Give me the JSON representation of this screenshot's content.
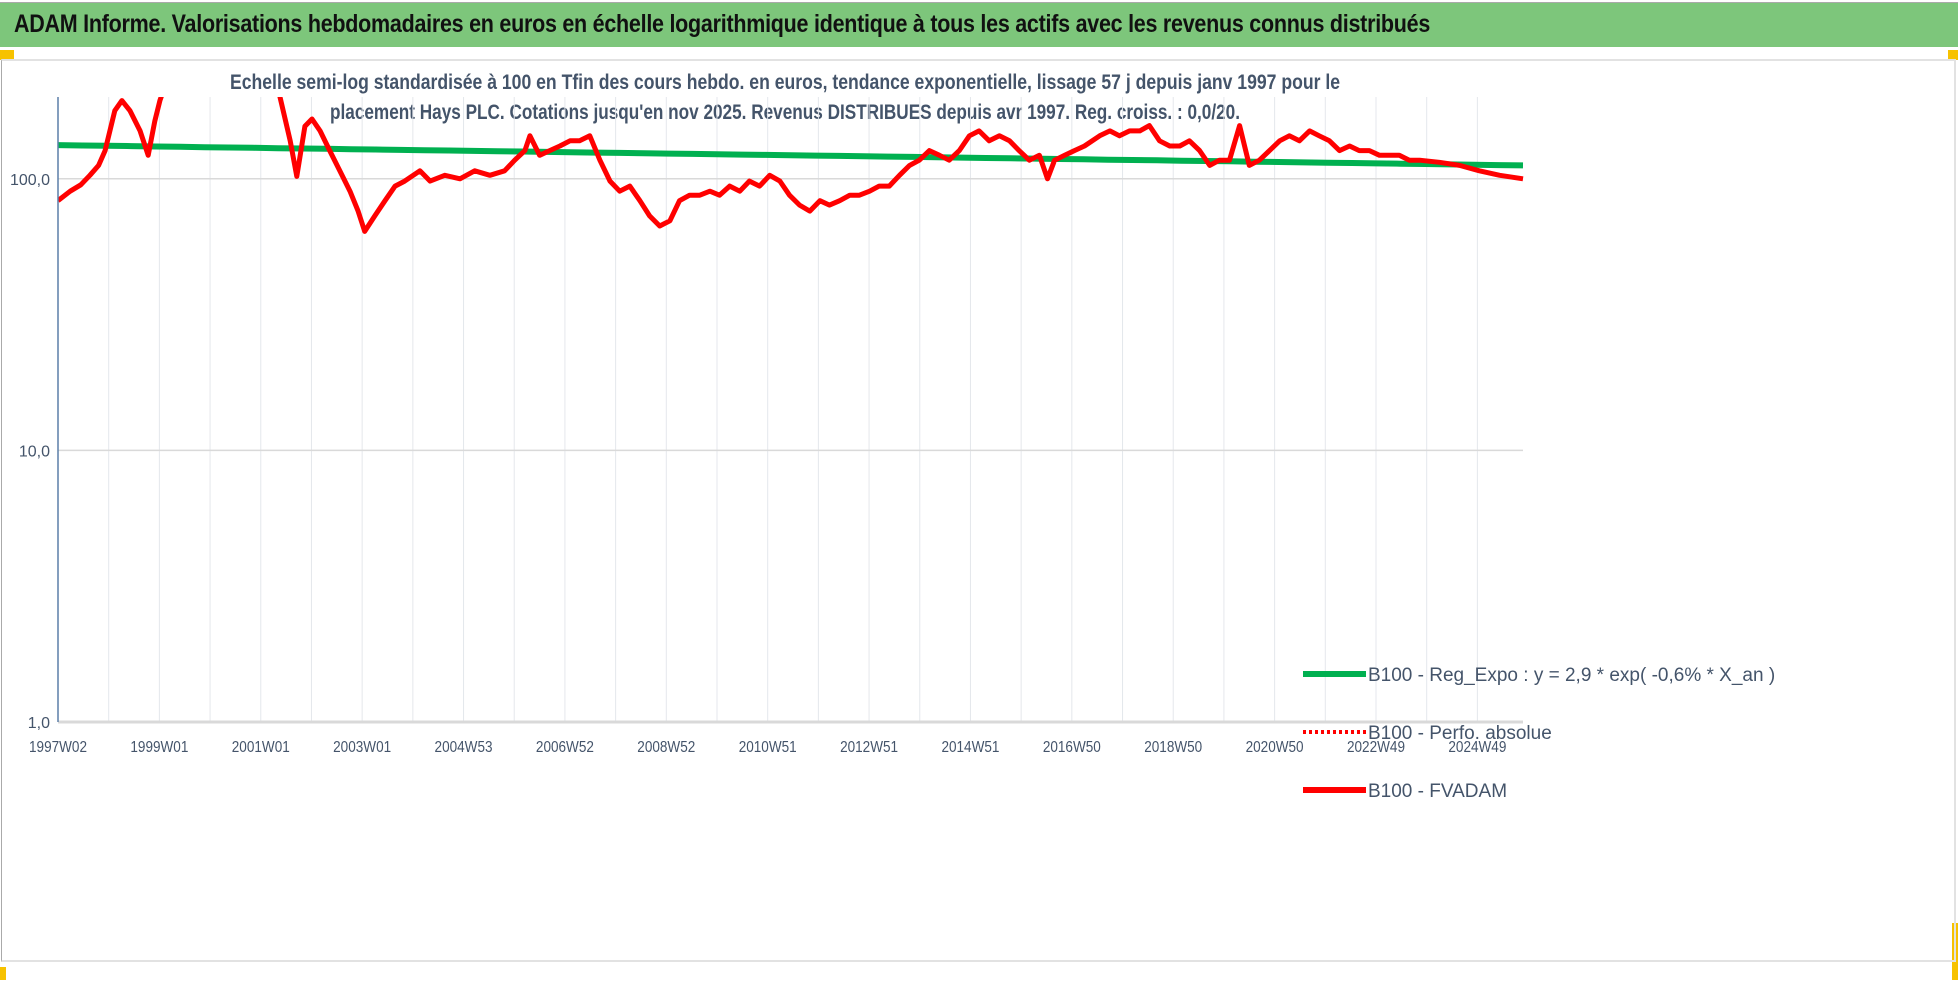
{
  "banner": {
    "title": "ADAM Informe. Valorisations hebdomadaires en euros en échelle logarithmique identique à tous les actifs avec les revenus connus distribués",
    "color": "#7dc67b"
  },
  "chart_data": {
    "type": "line",
    "title_lines": [
      "Echelle semi-log standardisée à 100 en Tfin des cours hebdo. en euros, tendance exponentielle, lissage 57 j depuis janv 1997 pour le",
      "placement Hays PLC. Cotations jusqu'en nov 2025. Revenus DISTRIBUES depuis avr 1997. Reg. croiss. : 0,0/20."
    ],
    "y_scale": "log",
    "ylim": [
      1,
      200
    ],
    "y_ticks": [
      {
        "value": 100,
        "label": "100,0"
      },
      {
        "value": 10,
        "label": "10,0"
      },
      {
        "value": 1,
        "label": "1,0"
      }
    ],
    "xlim": [
      1997.0,
      2025.9
    ],
    "x_ticks": [
      {
        "value": 1997.0,
        "label": "1997W02"
      },
      {
        "value": 1999.0,
        "label": "1999W01"
      },
      {
        "value": 2001.0,
        "label": "2001W01"
      },
      {
        "value": 2003.0,
        "label": "2003W01"
      },
      {
        "value": 2005.0,
        "label": "2004W53"
      },
      {
        "value": 2007.0,
        "label": "2006W52"
      },
      {
        "value": 2009.0,
        "label": "2008W52"
      },
      {
        "value": 2011.0,
        "label": "2010W51"
      },
      {
        "value": 2013.0,
        "label": "2012W51"
      },
      {
        "value": 2015.0,
        "label": "2014W51"
      },
      {
        "value": 2017.0,
        "label": "2016W50"
      },
      {
        "value": 2019.0,
        "label": "2018W50"
      },
      {
        "value": 2021.0,
        "label": "2020W50"
      },
      {
        "value": 2023.0,
        "label": "2022W49"
      },
      {
        "value": 2025.0,
        "label": "2024W49"
      }
    ],
    "grid": "vertical yearly + horizontal at decades",
    "legend_position": "bottom-right",
    "series": [
      {
        "name": "B100 - Reg_Expo : y = 2,9 * exp( -0,6% *  X_an )",
        "color": "#00b050",
        "style": "solid",
        "points": [
          [
            1997.0,
            133
          ],
          [
            2025.9,
            112
          ]
        ]
      },
      {
        "name": "B100 - Perfo. absolue",
        "color": "#ff0000",
        "style": "dotted",
        "points": []
      },
      {
        "name": "B100 - FVADAM",
        "color": "#ff0000",
        "style": "solid",
        "points": [
          [
            1997.0,
            83
          ],
          [
            1997.24,
            90
          ],
          [
            1997.45,
            95
          ],
          [
            1997.63,
            103
          ],
          [
            1997.8,
            112
          ],
          [
            1997.93,
            127
          ],
          [
            1998.12,
            178
          ],
          [
            1998.26,
            194
          ],
          [
            1998.42,
            178
          ],
          [
            1998.62,
            150
          ],
          [
            1998.78,
            122
          ],
          [
            1998.91,
            163
          ],
          [
            1999.01,
            194
          ],
          [
            1999.11,
            220
          ],
          [
            2000.0,
            320
          ],
          [
            2001.3,
            280
          ],
          [
            2001.38,
            200
          ],
          [
            2001.58,
            138
          ],
          [
            2001.71,
            102
          ],
          [
            2001.87,
            156
          ],
          [
            2002.01,
            166
          ],
          [
            2002.17,
            150
          ],
          [
            2002.36,
            127
          ],
          [
            2002.56,
            107
          ],
          [
            2002.76,
            90
          ],
          [
            2002.92,
            76
          ],
          [
            2003.05,
            64
          ],
          [
            2003.25,
            73
          ],
          [
            2003.45,
            83
          ],
          [
            2003.65,
            94
          ],
          [
            2003.84,
            98
          ],
          [
            2004.14,
            107
          ],
          [
            2004.34,
            98
          ],
          [
            2004.63,
            103
          ],
          [
            2004.93,
            100
          ],
          [
            2005.22,
            107
          ],
          [
            2005.52,
            103
          ],
          [
            2005.81,
            107
          ],
          [
            2006.01,
            117
          ],
          [
            2006.21,
            127
          ],
          [
            2006.31,
            144
          ],
          [
            2006.5,
            122
          ],
          [
            2006.7,
            127
          ],
          [
            2006.9,
            132
          ],
          [
            2007.1,
            138
          ],
          [
            2007.29,
            138
          ],
          [
            2007.49,
            144
          ],
          [
            2007.69,
            117
          ],
          [
            2007.89,
            98
          ],
          [
            2008.08,
            90
          ],
          [
            2008.28,
            94
          ],
          [
            2008.48,
            83
          ],
          [
            2008.67,
            73
          ],
          [
            2008.87,
            67
          ],
          [
            2009.07,
            70
          ],
          [
            2009.26,
            83
          ],
          [
            2009.46,
            87
          ],
          [
            2009.66,
            87
          ],
          [
            2009.86,
            90
          ],
          [
            2010.05,
            87
          ],
          [
            2010.25,
            94
          ],
          [
            2010.45,
            90
          ],
          [
            2010.64,
            98
          ],
          [
            2010.84,
            94
          ],
          [
            2011.04,
            103
          ],
          [
            2011.24,
            98
          ],
          [
            2011.43,
            87
          ],
          [
            2011.63,
            80
          ],
          [
            2011.83,
            76
          ],
          [
            2012.03,
            83
          ],
          [
            2012.22,
            80
          ],
          [
            2012.42,
            83
          ],
          [
            2012.62,
            87
          ],
          [
            2012.81,
            87
          ],
          [
            2013.01,
            90
          ],
          [
            2013.2,
            94
          ],
          [
            2013.4,
            94
          ],
          [
            2013.6,
            103
          ],
          [
            2013.8,
            112
          ],
          [
            2013.99,
            117
          ],
          [
            2014.19,
            127
          ],
          [
            2014.39,
            122
          ],
          [
            2014.58,
            117
          ],
          [
            2014.78,
            127
          ],
          [
            2014.98,
            144
          ],
          [
            2015.17,
            150
          ],
          [
            2015.37,
            138
          ],
          [
            2015.57,
            144
          ],
          [
            2015.77,
            138
          ],
          [
            2015.96,
            127
          ],
          [
            2016.16,
            117
          ],
          [
            2016.36,
            122
          ],
          [
            2016.52,
            100
          ],
          [
            2016.66,
            117
          ],
          [
            2016.86,
            122
          ],
          [
            2017.05,
            127
          ],
          [
            2017.25,
            132
          ],
          [
            2017.55,
            144
          ],
          [
            2017.75,
            150
          ],
          [
            2017.94,
            144
          ],
          [
            2018.14,
            150
          ],
          [
            2018.34,
            150
          ],
          [
            2018.53,
            157
          ],
          [
            2018.73,
            138
          ],
          [
            2018.93,
            132
          ],
          [
            2019.13,
            132
          ],
          [
            2019.32,
            138
          ],
          [
            2019.52,
            127
          ],
          [
            2019.72,
            112
          ],
          [
            2019.91,
            117
          ],
          [
            2020.11,
            117
          ],
          [
            2020.31,
            157
          ],
          [
            2020.5,
            112
          ],
          [
            2020.7,
            117
          ],
          [
            2020.9,
            127
          ],
          [
            2021.1,
            138
          ],
          [
            2021.29,
            144
          ],
          [
            2021.49,
            138
          ],
          [
            2021.69,
            150
          ],
          [
            2021.88,
            144
          ],
          [
            2022.08,
            138
          ],
          [
            2022.28,
            127
          ],
          [
            2022.48,
            132
          ],
          [
            2022.67,
            127
          ],
          [
            2022.87,
            127
          ],
          [
            2023.07,
            122
          ],
          [
            2023.26,
            122
          ],
          [
            2023.46,
            122
          ],
          [
            2023.66,
            117
          ],
          [
            2023.86,
            117
          ],
          [
            2024.25,
            115
          ],
          [
            2024.65,
            112
          ],
          [
            2025.04,
            107
          ],
          [
            2025.44,
            103
          ],
          [
            2025.9,
            100
          ]
        ]
      }
    ]
  }
}
